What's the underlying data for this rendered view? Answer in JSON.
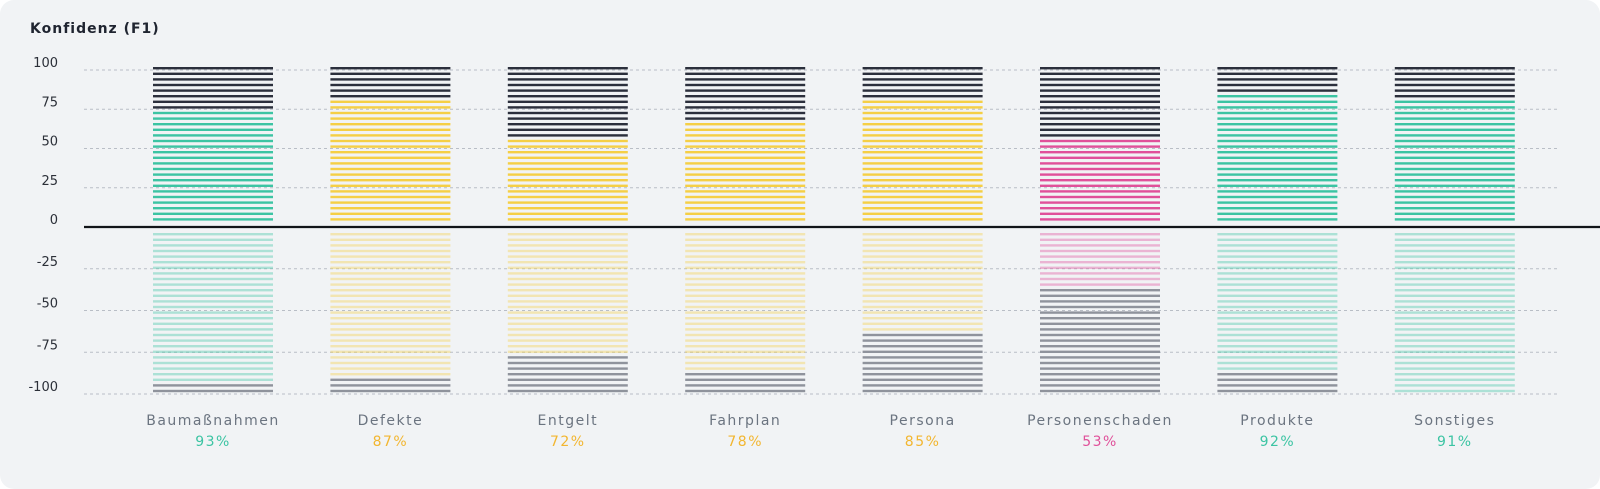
{
  "chart_data": {
    "type": "bar",
    "title": "Konfidenz (F1)",
    "ylim": [
      -100,
      100
    ],
    "yticks": [
      100,
      75,
      50,
      25,
      0,
      -25,
      -50,
      -75,
      -100
    ],
    "grid": true,
    "categories": [
      "Baumaßnahmen",
      "Defekte",
      "Entgelt",
      "Fahrplan",
      "Persona",
      "Personenschaden",
      "Produkte",
      "Sonstiges"
    ],
    "f1_labels": [
      "93%",
      "87%",
      "72%",
      "78%",
      "85%",
      "53%",
      "92%",
      "91%"
    ],
    "positive_values": [
      76,
      83,
      59,
      68,
      82,
      59,
      87,
      81
    ],
    "negative_values": [
      -93,
      -90,
      -75,
      -87,
      -62,
      -34,
      -87,
      -98
    ],
    "colors": [
      "#3cc4a3",
      "#f5cf45",
      "#f5cf45",
      "#f5cf45",
      "#f5cf45",
      "#e0509a",
      "#3cc4a3",
      "#3cc4a3"
    ],
    "label_colors": [
      "#3cc4a3",
      "#f2b630",
      "#f2b630",
      "#f2b630",
      "#f2b630",
      "#e0509a",
      "#3cc4a3",
      "#3cc4a3"
    ],
    "remainder_color": "#2b2f3c",
    "negative_remainder_color": "#8f939c"
  }
}
